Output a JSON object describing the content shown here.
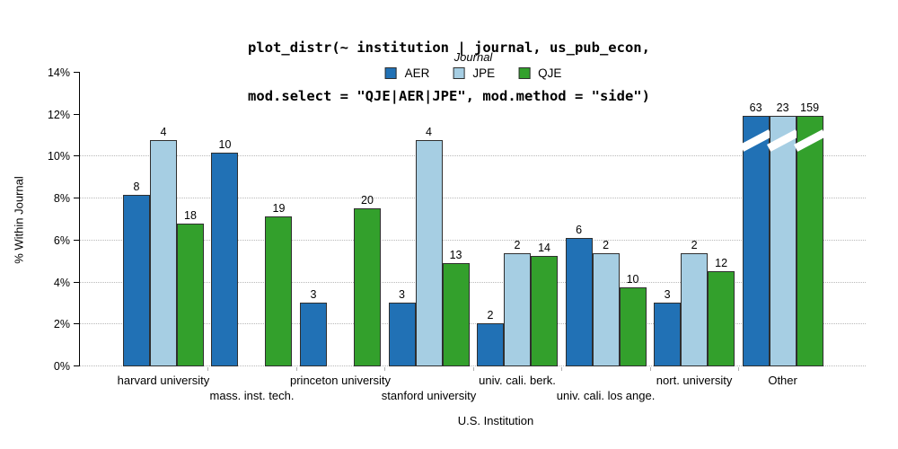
{
  "title": {
    "line1": "plot_distr(~ institution | journal, us_pub_econ,",
    "line2": "mod.select = \"QJE|AER|JPE\", mod.method = \"side\")"
  },
  "legend": {
    "title": "Journal",
    "items": [
      {
        "label": "AER",
        "color": "#2171b5"
      },
      {
        "label": "JPE",
        "color": "#a6cee3"
      },
      {
        "label": "QJE",
        "color": "#33a02c"
      }
    ]
  },
  "axes": {
    "y": {
      "label": "% Within Journal",
      "tick_labels": [
        "0%",
        "2%",
        "4%",
        "6%",
        "8%",
        "10%",
        "12%",
        "14%"
      ],
      "max": 14,
      "tick_step": 2,
      "grid_levels": [
        0,
        2,
        4,
        6,
        8,
        10
      ]
    },
    "x": {
      "label": "U.S. Institution"
    }
  },
  "chart_data": {
    "type": "bar",
    "title": "plot_distr(~ institution | journal, us_pub_econ, mod.select = \"QJE|AER|JPE\", mod.method = \"side\")",
    "ylabel": "% Within Journal",
    "xlabel": "U.S. Institution",
    "ylim": [
      0,
      14
    ],
    "grid": "dotted horizontal",
    "legend_position": "top-center",
    "series_names": [
      "AER",
      "JPE",
      "QJE"
    ],
    "colors": {
      "AER": "#2171b5",
      "JPE": "#a6cee3",
      "QJE": "#33a02c"
    },
    "bar_border_color": "#2f2f2f",
    "categories": [
      "harvard university",
      "mass. inst. tech.",
      "princeton university",
      "stanford university",
      "univ. cali. berk.",
      "univ. cali. los ange.",
      "nort. university",
      "Other"
    ],
    "groups": [
      {
        "category": "harvard university",
        "label_row": 1,
        "bars": [
          {
            "journal": "AER",
            "count": 8,
            "pct": 8.16
          },
          {
            "journal": "JPE",
            "count": 4,
            "pct": 10.81
          },
          {
            "journal": "QJE",
            "count": 18,
            "pct": 6.79
          }
        ]
      },
      {
        "category": "mass. inst. tech.",
        "label_row": 2,
        "bars": [
          {
            "journal": "AER",
            "count": 10,
            "pct": 10.2
          },
          {
            "journal": "JPE",
            "count": null,
            "pct": null,
            "missing": true
          },
          {
            "journal": "QJE",
            "count": 19,
            "pct": 7.17
          }
        ]
      },
      {
        "category": "princeton university",
        "label_row": 1,
        "bars": [
          {
            "journal": "AER",
            "count": 3,
            "pct": 3.06
          },
          {
            "journal": "JPE",
            "count": null,
            "pct": null,
            "missing": true
          },
          {
            "journal": "QJE",
            "count": 20,
            "pct": 7.55
          }
        ]
      },
      {
        "category": "stanford university",
        "label_row": 2,
        "bars": [
          {
            "journal": "AER",
            "count": 3,
            "pct": 3.06
          },
          {
            "journal": "JPE",
            "count": 4,
            "pct": 10.81
          },
          {
            "journal": "QJE",
            "count": 13,
            "pct": 4.91
          }
        ]
      },
      {
        "category": "univ. cali. berk.",
        "label_row": 1,
        "bars": [
          {
            "journal": "AER",
            "count": 2,
            "pct": 2.04
          },
          {
            "journal": "JPE",
            "count": 2,
            "pct": 5.41
          },
          {
            "journal": "QJE",
            "count": 14,
            "pct": 5.28
          }
        ]
      },
      {
        "category": "univ. cali. los ange.",
        "label_row": 2,
        "bars": [
          {
            "journal": "AER",
            "count": 6,
            "pct": 6.12
          },
          {
            "journal": "JPE",
            "count": 2,
            "pct": 5.41
          },
          {
            "journal": "QJE",
            "count": 10,
            "pct": 3.77
          }
        ]
      },
      {
        "category": "nort. university",
        "label_row": 1,
        "bars": [
          {
            "journal": "AER",
            "count": 3,
            "pct": 3.06
          },
          {
            "journal": "JPE",
            "count": 2,
            "pct": 5.41
          },
          {
            "journal": "QJE",
            "count": 12,
            "pct": 4.53
          }
        ]
      },
      {
        "category": "Other",
        "label_row": 1,
        "bars": [
          {
            "journal": "AER",
            "count": 63,
            "pct": 11.95,
            "truncated": true
          },
          {
            "journal": "JPE",
            "count": 23,
            "pct": 11.95,
            "truncated": true
          },
          {
            "journal": "QJE",
            "count": 159,
            "pct": 11.95,
            "truncated": true
          }
        ]
      }
    ]
  }
}
